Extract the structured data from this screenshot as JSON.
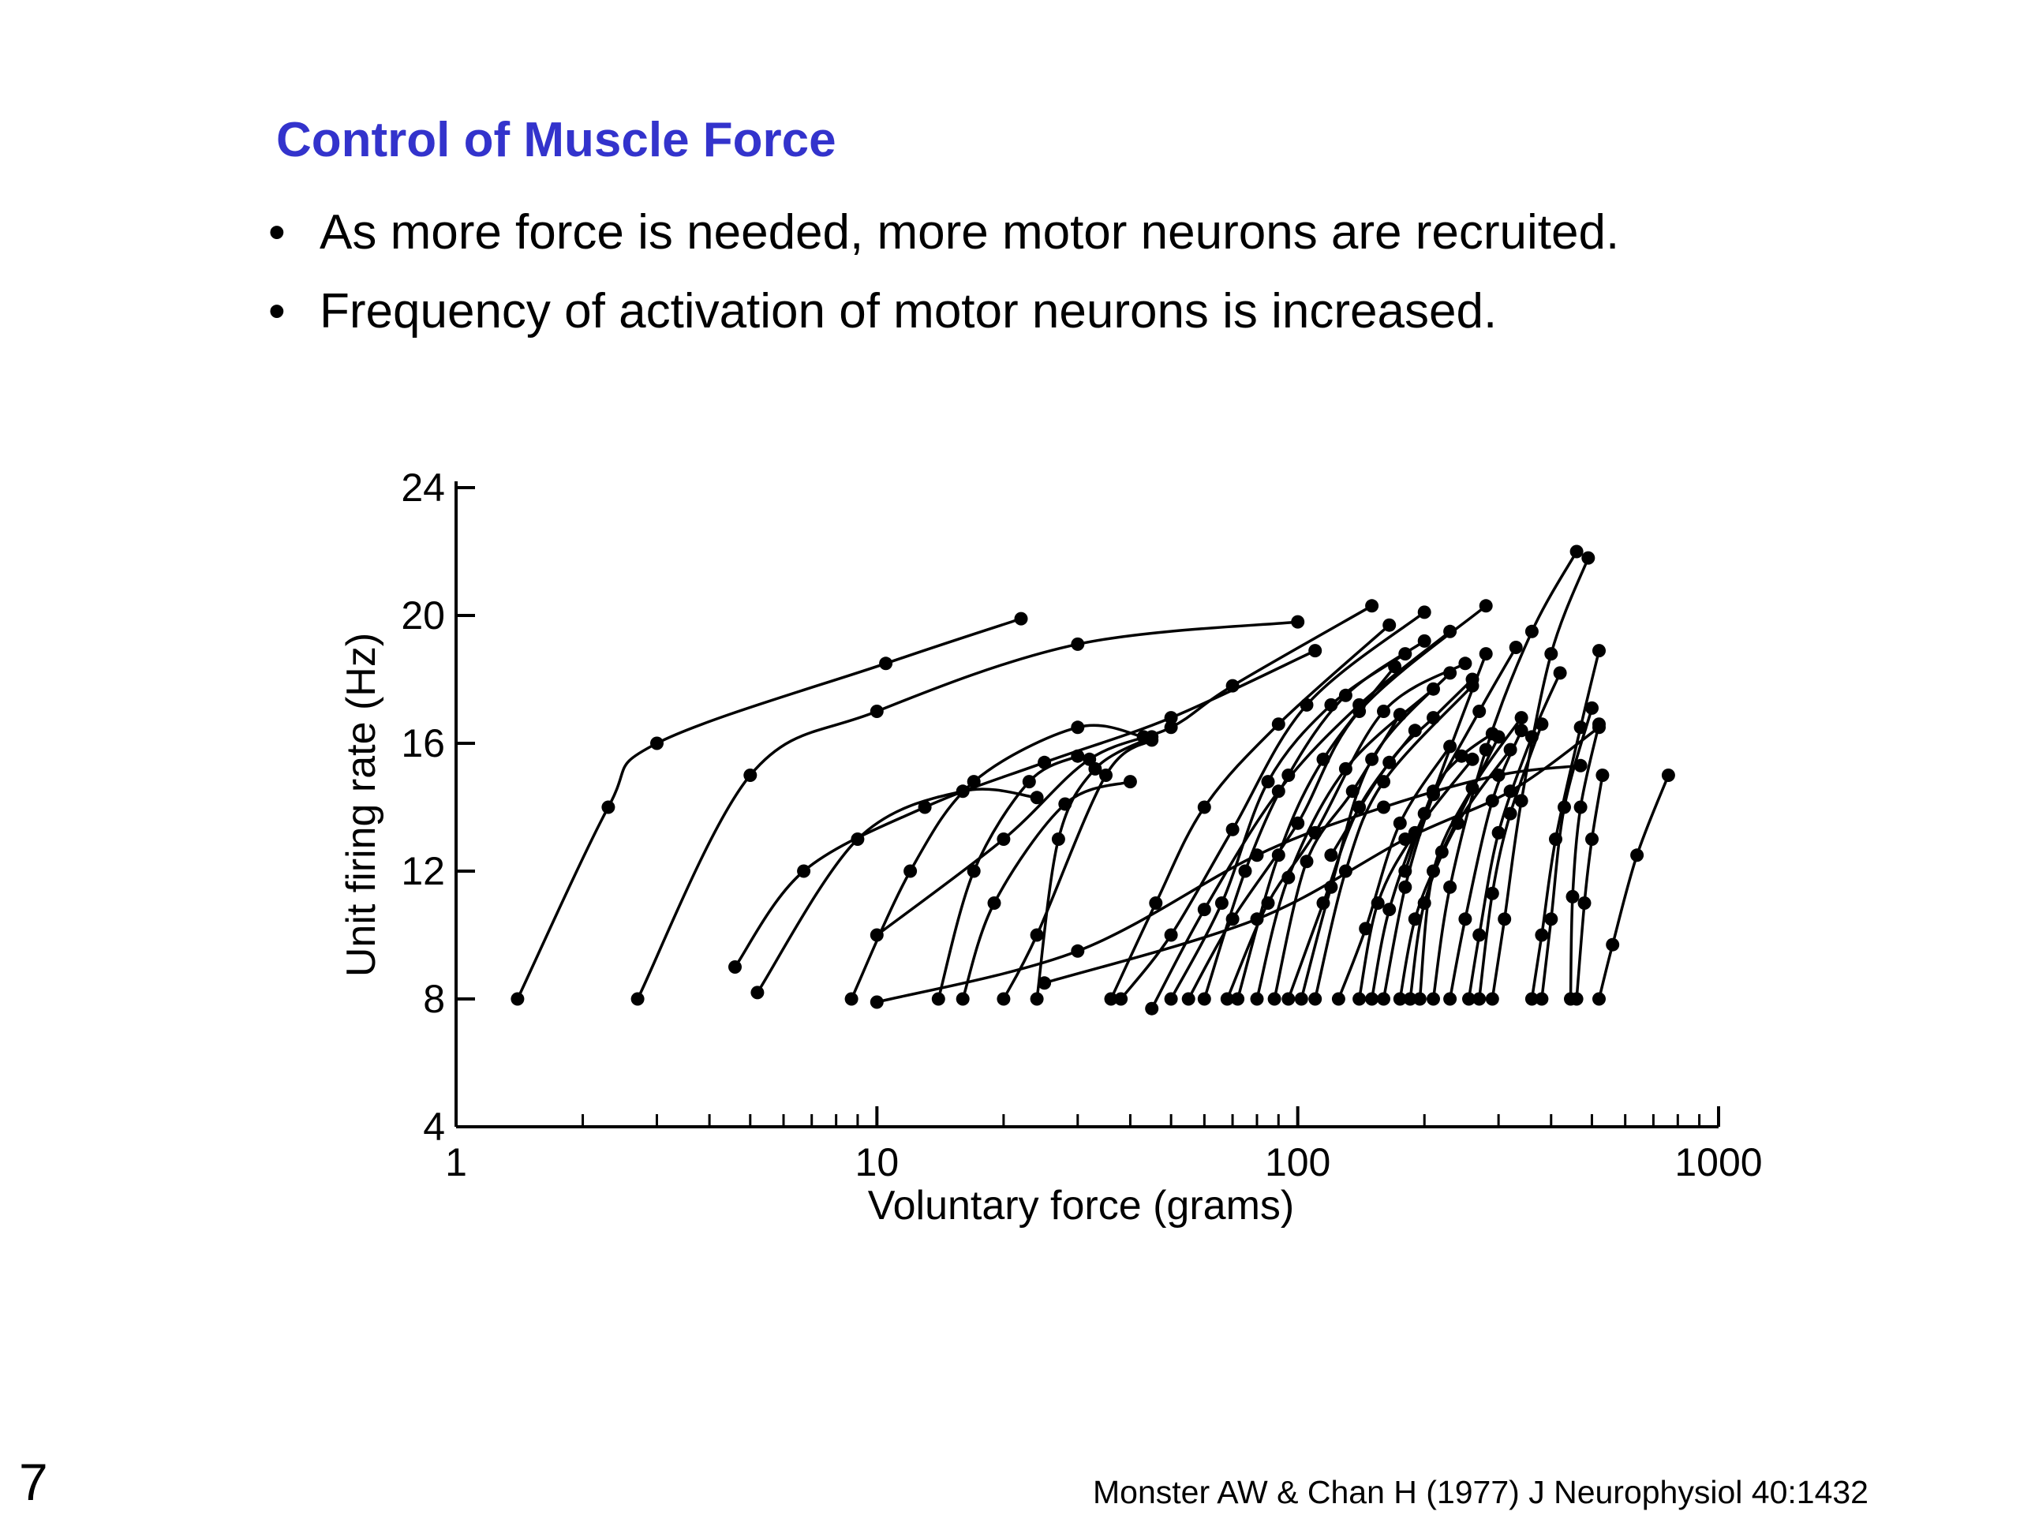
{
  "slide": {
    "title": "Control of Muscle Force",
    "bullets": [
      "As more force is needed, more motor neurons are recruited.",
      "Frequency of activation of motor neurons is increased."
    ],
    "bullet_symbol": "•",
    "page_number": "7",
    "citation": "Monster AW & Chan H (1977) J Neurophysiol 40:1432",
    "title_color": "#3333cc"
  },
  "chart_data": {
    "type": "line",
    "xlabel": "Voluntary force (grams)",
    "ylabel": "Unit firing rate (Hz)",
    "xscale": "log",
    "xlim": [
      1,
      1000
    ],
    "ylim": [
      4,
      24
    ],
    "xticks": [
      1,
      10,
      100,
      1000
    ],
    "xtick_labels": [
      "1",
      "10",
      "100",
      "1000"
    ],
    "yticks": [
      4,
      8,
      12,
      16,
      20,
      24
    ],
    "ytick_labels": [
      "4",
      "8",
      "12",
      "16",
      "20",
      "24"
    ],
    "grid": false,
    "legend": "none",
    "series": [
      {
        "values": [
          [
            1.4,
            8
          ],
          [
            2.3,
            14
          ],
          [
            3.0,
            16
          ],
          [
            10.5,
            18.5
          ],
          [
            22,
            19.9
          ]
        ]
      },
      {
        "values": [
          [
            2.7,
            8
          ],
          [
            5.0,
            15
          ],
          [
            10.0,
            17
          ],
          [
            30,
            19.1
          ],
          [
            100,
            19.8
          ]
        ]
      },
      {
        "values": [
          [
            4.6,
            9
          ],
          [
            6.7,
            12
          ],
          [
            13,
            14
          ],
          [
            25,
            15.4
          ],
          [
            50,
            16.8
          ],
          [
            110,
            18.9
          ]
        ]
      },
      {
        "values": [
          [
            5.2,
            8.2
          ],
          [
            9.0,
            13
          ],
          [
            16,
            14.5
          ],
          [
            24,
            14.3
          ]
        ]
      },
      {
        "values": [
          [
            10,
            10
          ],
          [
            20,
            13
          ],
          [
            32,
            15.5
          ],
          [
            50,
            16.5
          ],
          [
            70,
            17.8
          ],
          [
            150,
            20.3
          ]
        ]
      },
      {
        "values": [
          [
            8.7,
            8
          ],
          [
            12,
            12
          ],
          [
            17,
            14.8
          ],
          [
            30,
            16.5
          ],
          [
            43,
            16.2
          ]
        ]
      },
      {
        "values": [
          [
            10,
            7.9
          ],
          [
            30,
            9.5
          ],
          [
            80,
            12.5
          ],
          [
            160,
            14
          ],
          [
            300,
            15
          ],
          [
            470,
            15.3
          ]
        ]
      },
      {
        "values": [
          [
            25,
            8.5
          ],
          [
            80,
            10.5
          ],
          [
            180,
            13
          ],
          [
            320,
            14.5
          ],
          [
            520,
            16.5
          ]
        ]
      },
      {
        "values": [
          [
            14,
            8
          ],
          [
            17,
            12
          ],
          [
            23,
            14.8
          ],
          [
            30,
            15.6
          ]
        ]
      },
      {
        "values": [
          [
            20,
            8
          ],
          [
            24,
            10
          ],
          [
            35,
            15
          ],
          [
            45,
            16.1
          ]
        ]
      },
      {
        "values": [
          [
            24,
            8
          ],
          [
            27,
            13
          ],
          [
            33,
            15.2
          ],
          [
            45,
            16.2
          ]
        ]
      },
      {
        "values": [
          [
            16,
            8
          ],
          [
            19,
            11
          ],
          [
            28,
            14.1
          ],
          [
            40,
            14.8
          ]
        ]
      },
      {
        "values": [
          [
            36,
            8
          ],
          [
            46,
            11
          ],
          [
            60,
            14
          ],
          [
            90,
            16.6
          ],
          [
            165,
            19.7
          ]
        ]
      },
      {
        "values": [
          [
            38,
            8
          ],
          [
            50,
            10
          ],
          [
            70,
            13.3
          ],
          [
            105,
            17.2
          ],
          [
            200,
            20.1
          ]
        ]
      },
      {
        "values": [
          [
            45,
            7.7
          ],
          [
            60,
            10.8
          ],
          [
            90,
            14.5
          ],
          [
            140,
            17.2
          ],
          [
            230,
            19.5
          ]
        ]
      },
      {
        "values": [
          [
            50,
            8
          ],
          [
            66,
            11
          ],
          [
            85,
            14.8
          ],
          [
            120,
            17.2
          ],
          [
            180,
            18.8
          ]
        ]
      },
      {
        "values": [
          [
            55,
            8
          ],
          [
            70,
            10.5
          ],
          [
            100,
            13.5
          ],
          [
            140,
            17
          ],
          [
            280,
            20.3
          ]
        ]
      },
      {
        "values": [
          [
            60,
            8
          ],
          [
            75,
            12
          ],
          [
            95,
            15
          ],
          [
            130,
            17.5
          ],
          [
            200,
            19.2
          ]
        ]
      },
      {
        "values": [
          [
            68,
            8
          ],
          [
            85,
            11
          ],
          [
            110,
            13.2
          ],
          [
            160,
            17
          ],
          [
            250,
            18.5
          ]
        ]
      },
      {
        "values": [
          [
            72,
            8
          ],
          [
            90,
            12.5
          ],
          [
            115,
            15.5
          ],
          [
            170,
            18.4
          ]
        ]
      },
      {
        "values": [
          [
            80,
            8
          ],
          [
            95,
            11.8
          ],
          [
            130,
            15.2
          ],
          [
            210,
            17.7
          ]
        ]
      },
      {
        "values": [
          [
            88,
            8
          ],
          [
            105,
            12.3
          ],
          [
            135,
            14.5
          ],
          [
            175,
            16.9
          ]
        ]
      },
      {
        "values": [
          [
            95,
            8
          ],
          [
            115,
            11
          ],
          [
            140,
            14
          ],
          [
            190,
            16.4
          ]
        ]
      },
      {
        "values": [
          [
            102,
            8
          ],
          [
            120,
            11.5
          ],
          [
            150,
            15.5
          ],
          [
            230,
            18.2
          ]
        ]
      },
      {
        "values": [
          [
            110,
            8
          ],
          [
            130,
            12
          ],
          [
            160,
            14.8
          ],
          [
            260,
            17.8
          ]
        ]
      },
      {
        "values": [
          [
            125,
            8
          ],
          [
            145,
            10.2
          ],
          [
            175,
            13.5
          ],
          [
            230,
            15.9
          ]
        ]
      },
      {
        "values": [
          [
            140,
            8
          ],
          [
            155,
            11
          ],
          [
            190,
            13.2
          ],
          [
            260,
            15.5
          ]
        ]
      },
      {
        "values": [
          [
            150,
            8
          ],
          [
            165,
            10.8
          ],
          [
            200,
            13.8
          ],
          [
            270,
            17
          ],
          [
            330,
            19
          ]
        ]
      },
      {
        "values": [
          [
            160,
            8
          ],
          [
            180,
            11.5
          ],
          [
            210,
            14.4
          ],
          [
            280,
            18.8
          ]
        ]
      },
      {
        "values": [
          [
            175,
            8
          ],
          [
            190,
            10.5
          ],
          [
            220,
            12.6
          ],
          [
            300,
            16.2
          ]
        ]
      },
      {
        "values": [
          [
            185,
            8
          ],
          [
            200,
            11
          ],
          [
            240,
            13.5
          ],
          [
            320,
            15.8
          ]
        ]
      },
      {
        "values": [
          [
            195,
            8
          ],
          [
            210,
            12
          ],
          [
            260,
            14.6
          ],
          [
            340,
            16.8
          ]
        ]
      },
      {
        "values": [
          [
            210,
            8
          ],
          [
            230,
            11.5
          ],
          [
            280,
            15.8
          ],
          [
            360,
            19.5
          ],
          [
            460,
            22
          ]
        ]
      },
      {
        "values": [
          [
            230,
            8
          ],
          [
            250,
            10.5
          ],
          [
            290,
            14.2
          ],
          [
            340,
            16.4
          ]
        ]
      },
      {
        "values": [
          [
            255,
            8
          ],
          [
            270,
            10
          ],
          [
            300,
            13.2
          ],
          [
            360,
            16.2
          ],
          [
            420,
            18.2
          ]
        ]
      },
      {
        "values": [
          [
            270,
            8
          ],
          [
            290,
            11.3
          ],
          [
            320,
            13.8
          ],
          [
            380,
            16.6
          ]
        ]
      },
      {
        "values": [
          [
            290,
            8
          ],
          [
            310,
            10.5
          ],
          [
            340,
            14.2
          ],
          [
            400,
            18.8
          ],
          [
            490,
            21.8
          ]
        ]
      },
      {
        "values": [
          [
            360,
            8
          ],
          [
            380,
            10
          ],
          [
            410,
            13
          ],
          [
            470,
            16.5
          ],
          [
            520,
            18.9
          ]
        ]
      },
      {
        "values": [
          [
            380,
            8
          ],
          [
            400,
            10.5
          ],
          [
            430,
            14
          ],
          [
            500,
            17.1
          ]
        ]
      },
      {
        "values": [
          [
            445,
            8
          ],
          [
            450,
            11.2
          ],
          [
            470,
            14
          ],
          [
            520,
            16.6
          ]
        ]
      },
      {
        "values": [
          [
            460,
            8
          ],
          [
            480,
            11
          ],
          [
            500,
            13
          ],
          [
            530,
            15
          ]
        ]
      },
      {
        "values": [
          [
            520,
            8
          ],
          [
            560,
            9.7
          ],
          [
            640,
            12.5
          ],
          [
            760,
            15
          ]
        ]
      },
      {
        "values": [
          [
            180,
            12
          ],
          [
            210,
            14.5
          ],
          [
            245,
            15.6
          ],
          [
            290,
            16.3
          ]
        ]
      },
      {
        "values": [
          [
            120,
            12.5
          ],
          [
            165,
            15.4
          ],
          [
            210,
            16.8
          ],
          [
            260,
            18
          ]
        ]
      }
    ]
  }
}
